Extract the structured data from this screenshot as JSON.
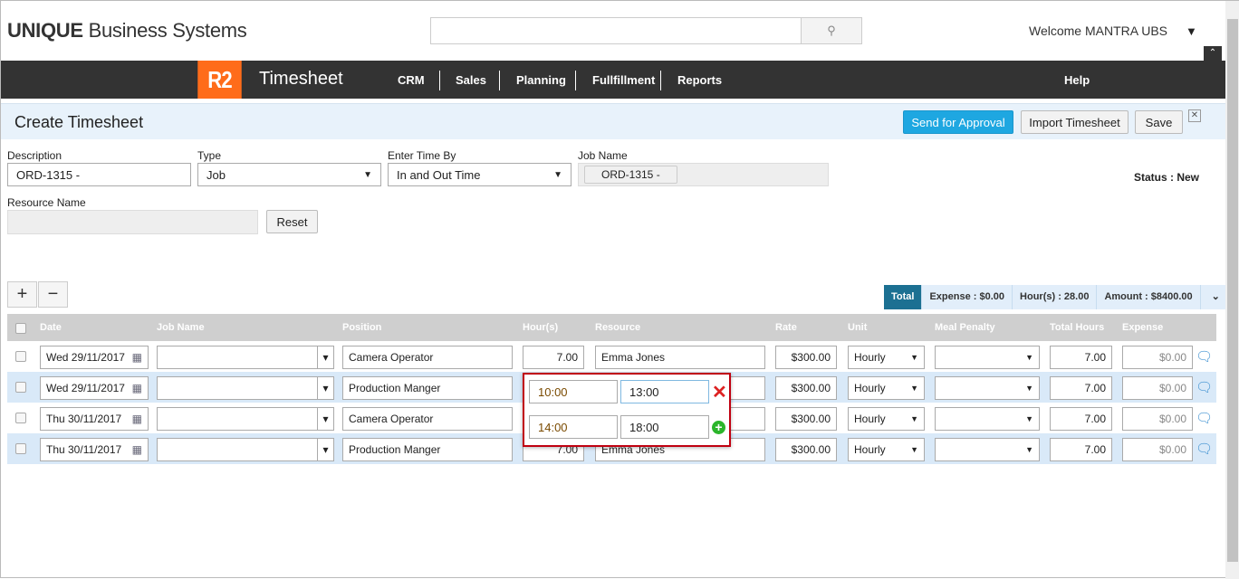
{
  "header": {
    "logo_bold": "UNIQUE",
    "logo_rest": " Business Systems",
    "search_placeholder": "",
    "welcome": "Welcome MANTRA UBS"
  },
  "nav": {
    "badge": "R2",
    "app": "Timesheet",
    "items": [
      "CRM",
      "Sales",
      "Planning",
      "Fullfillment",
      "Reports"
    ],
    "help": "Help"
  },
  "page": {
    "title": "Create Timesheet",
    "send": "Send for Approval",
    "import": "Import Timesheet",
    "save": "Save"
  },
  "form": {
    "description_label": "Description",
    "description": "ORD-1315 -",
    "type_label": "Type",
    "type": "Job",
    "enter_by_label": "Enter Time By",
    "enter_by": "In and Out Time",
    "job_name_label": "Job Name",
    "job_name": "ORD-1315 -",
    "resource_label": "Resource Name",
    "resource": "",
    "reset": "Reset",
    "status": "Status : New"
  },
  "totals": {
    "label": "Total",
    "expense": "Expense : $0.00",
    "hours": "Hour(s) : 28.00",
    "amount": "Amount : $8400.00"
  },
  "columns": [
    "Date",
    "Job Name",
    "Position",
    "Hour(s)",
    "Resource",
    "Rate",
    "Unit",
    "Meal Penalty",
    "Total Hours",
    "Expense"
  ],
  "rows": [
    {
      "date": "Wed 29/11/2017",
      "job": "",
      "position": "Camera Operator",
      "hours": "7.00",
      "resource": "Emma Jones",
      "rate": "$300.00",
      "unit": "Hourly",
      "meal": "",
      "total": "7.00",
      "expense": "$0.00",
      "highlight": false
    },
    {
      "date": "Wed 29/11/2017",
      "job": "",
      "position": "Production Manger",
      "hours": "",
      "resource": "",
      "rate": "$300.00",
      "unit": "Hourly",
      "meal": "",
      "total": "7.00",
      "expense": "$0.00",
      "highlight": true
    },
    {
      "date": "Thu 30/11/2017",
      "job": "",
      "position": "Camera Operator",
      "hours": "",
      "resource": "",
      "rate": "$300.00",
      "unit": "Hourly",
      "meal": "",
      "total": "7.00",
      "expense": "$0.00",
      "highlight": false
    },
    {
      "date": "Thu 30/11/2017",
      "job": "",
      "position": "Production Manger",
      "hours": "7.00",
      "resource": "Emma Jones",
      "rate": "$300.00",
      "unit": "Hourly",
      "meal": "",
      "total": "7.00",
      "expense": "$0.00",
      "highlight": true
    }
  ],
  "popup": {
    "in1": "10:00",
    "out1": "13:00",
    "in2": "14:00",
    "out2": "18:00"
  },
  "colors": {
    "accent": "#ff6c1a",
    "primary": "#1ea7e1",
    "nav": "#333333",
    "popup_border": "#c00010",
    "total": "#1c7092"
  }
}
